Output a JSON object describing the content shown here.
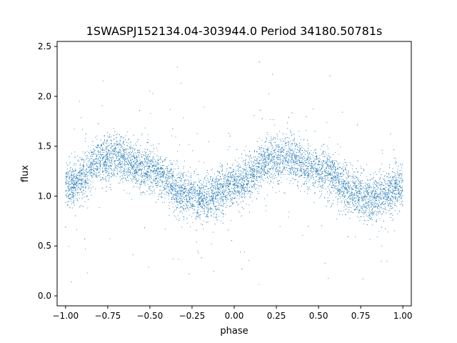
{
  "chart_data": {
    "type": "scatter",
    "title": "1SWASPJ152134.04-303944.0 Period 34180.50781s",
    "xlabel": "phase",
    "ylabel": "flux",
    "xlim": [
      -1.05,
      1.05
    ],
    "ylim": [
      -0.1,
      2.55
    ],
    "xticks": [
      -1.0,
      -0.75,
      -0.5,
      -0.25,
      0.0,
      0.25,
      0.5,
      0.75,
      1.0
    ],
    "xtick_labels": [
      "−1.00",
      "−0.75",
      "−0.50",
      "−0.25",
      "0.00",
      "0.25",
      "0.50",
      "0.75",
      "1.00"
    ],
    "yticks": [
      0.0,
      0.5,
      1.0,
      1.5,
      2.0,
      2.5
    ],
    "ytick_labels": [
      "0.0",
      "0.5",
      "1.0",
      "1.5",
      "2.0",
      "2.5"
    ],
    "grid": false,
    "marker_color": "#1f77b4",
    "series_trend": {
      "phase": [
        -1.0,
        -0.75,
        -0.7,
        -0.5,
        -0.25,
        -0.2,
        0.0,
        0.25,
        0.3,
        0.5,
        0.75,
        0.8,
        1.0
      ],
      "flux": [
        1.1,
        1.38,
        1.4,
        1.25,
        1.0,
        0.97,
        1.1,
        1.38,
        1.4,
        1.25,
        1.0,
        0.97,
        1.1
      ]
    }
  }
}
